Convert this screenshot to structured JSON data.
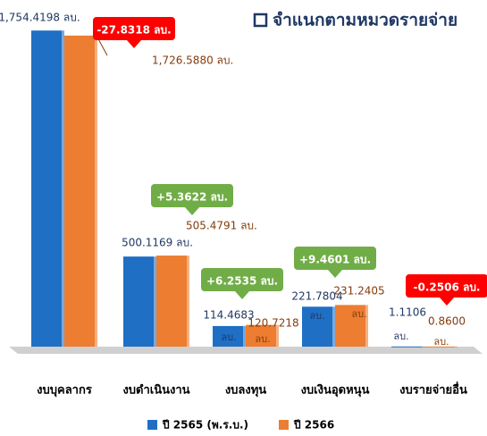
{
  "chart_data": {
    "type": "bar",
    "title": "จำแนกตามหมวดรายจ่าย",
    "unit": "ลบ.",
    "categories": [
      "งบบุคลากร",
      "งบดำเนินงาน",
      "งบลงทุน",
      "งบเงินอุดหนุน",
      "งบรายจ่ายอื่น"
    ],
    "series": [
      {
        "name": "ปี 2565 (พ.ร.บ.)",
        "color": "#1f6fc5",
        "values": [
          1754.4198,
          500.1169,
          114.4683,
          221.7804,
          1.1106
        ],
        "value_labels": [
          "1,754.4198 ลบ.",
          "500.1169 ลบ.",
          "114.4683",
          "221.7804",
          "1.1106"
        ]
      },
      {
        "name": "ปี 2566",
        "color": "#ed7d31",
        "values": [
          1726.588,
          505.4791,
          120.7218,
          231.2405,
          0.86
        ],
        "value_labels": [
          "1,726.5880 ลบ.",
          "505.4791 ลบ.",
          "120.7218",
          "231.2405",
          "0.8600"
        ]
      }
    ],
    "differences": [
      {
        "value": -27.8318,
        "label": "-27.8318 ลบ."
      },
      {
        "value": 5.3622,
        "label": "+5.3622 ลบ."
      },
      {
        "value": 6.2535,
        "label": "+6.2535 ลบ."
      },
      {
        "value": 9.4601,
        "label": "+9.4601 ลบ."
      },
      {
        "value": -0.2506,
        "label": "-0.2506 ลบ."
      }
    ],
    "increase_color": "#70ad47",
    "decrease_color": "#ff0000",
    "ylim": [
      0,
      1800
    ],
    "legend": "bottom"
  }
}
